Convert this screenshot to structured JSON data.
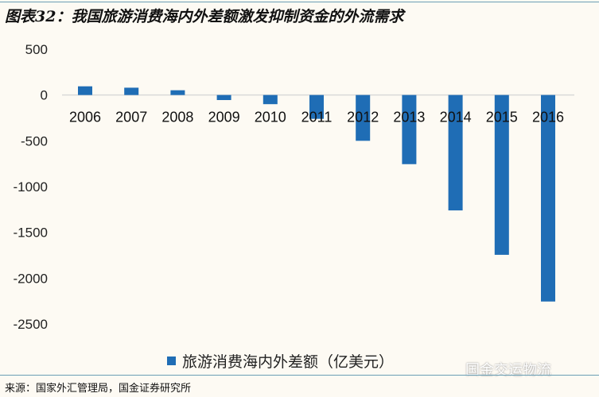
{
  "title": "图表32：我国旅游消费海内外差额激发抑制资金的外流需求",
  "source": "来源：国家外汇管理局，国金证券研究所",
  "watermark": "国金交运物流",
  "chart_data": {
    "type": "bar",
    "categories": [
      "2006",
      "2007",
      "2008",
      "2009",
      "2010",
      "2011",
      "2012",
      "2013",
      "2014",
      "2015",
      "2016"
    ],
    "series": [
      {
        "name": "旅游消费海内外差额（亿美元）",
        "values": [
          95,
          80,
          52,
          -55,
          -100,
          -260,
          -500,
          -755,
          -1260,
          -1745,
          -2255
        ],
        "color": "#1f6db5"
      }
    ],
    "ylim": [
      -2500,
      500
    ],
    "yticks": [
      500,
      0,
      -500,
      -1000,
      -1500,
      -2000,
      -2500
    ],
    "grid": false,
    "legend": "bottom"
  }
}
